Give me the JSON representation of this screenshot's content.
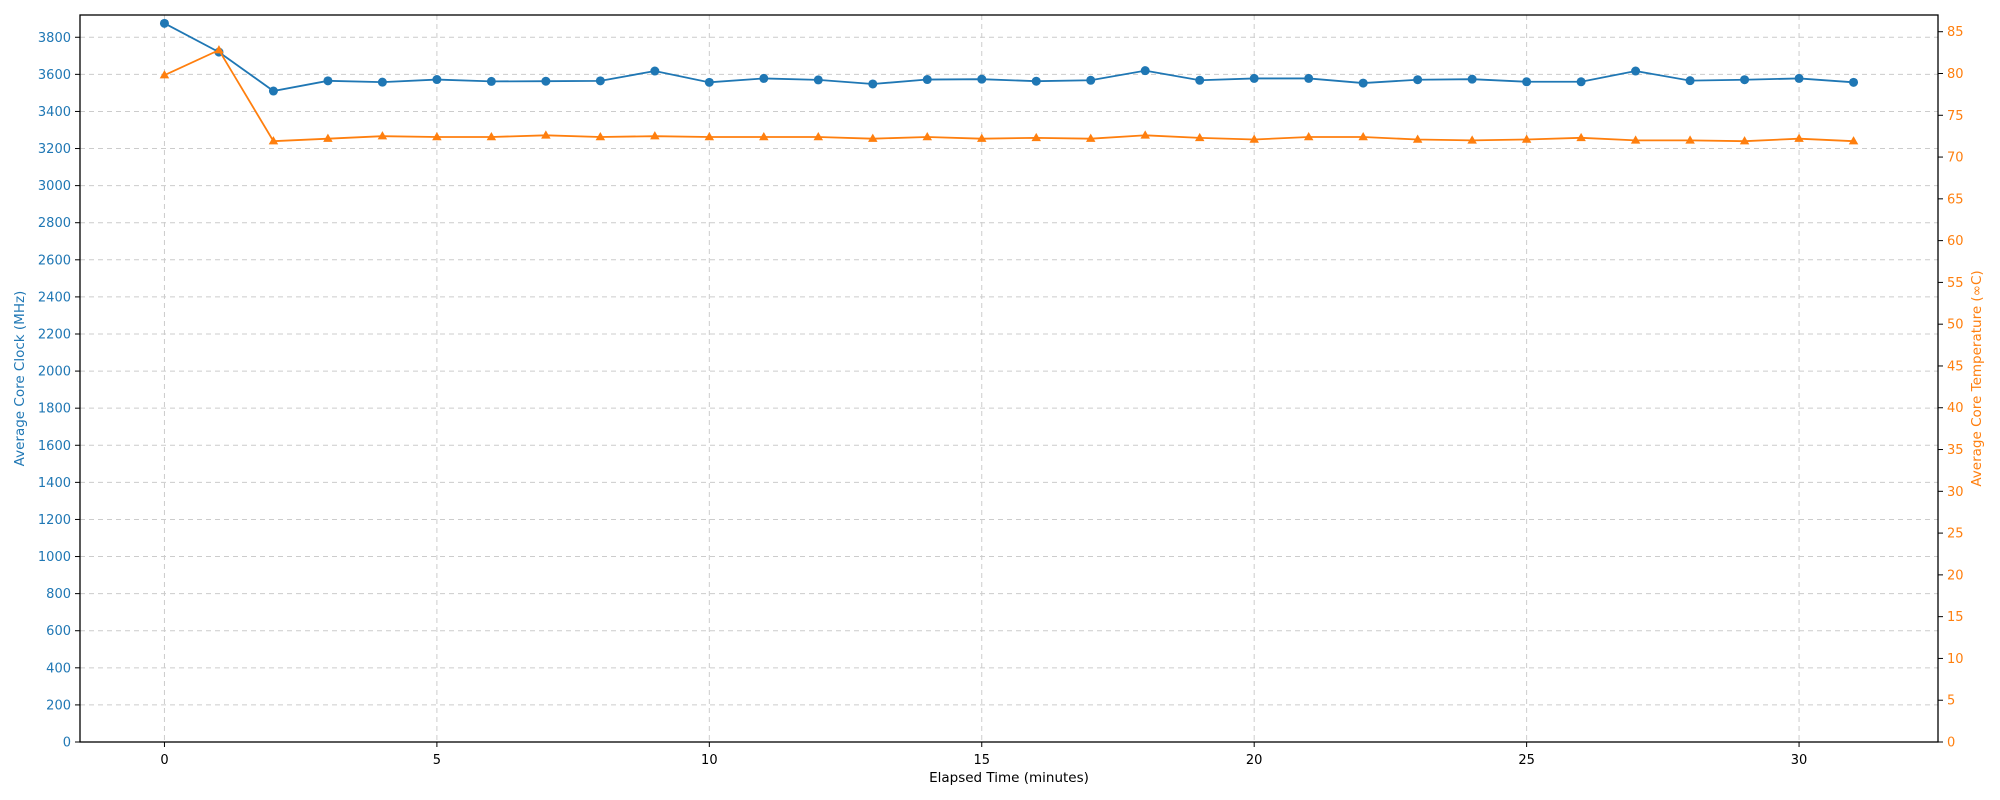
{
  "chart_data": {
    "type": "line",
    "xlabel": "Elapsed Time (minutes)",
    "ylabel_left": "Average Core Clock (MHz)",
    "ylabel_right": "Average Core Temperature (∞C)",
    "xlim": [
      -1.55,
      32.55
    ],
    "ylim_left": [
      0,
      3920
    ],
    "ylim_right": [
      0,
      87
    ],
    "x_ticks": [
      0,
      5,
      10,
      15,
      20,
      25,
      30
    ],
    "y_ticks_left": [
      0,
      200,
      400,
      600,
      800,
      1000,
      1200,
      1400,
      1600,
      1800,
      2000,
      2200,
      2400,
      2600,
      2800,
      3000,
      3200,
      3400,
      3600,
      3800
    ],
    "y_ticks_right": [
      0,
      5,
      10,
      15,
      20,
      25,
      30,
      35,
      40,
      45,
      50,
      55,
      60,
      65,
      70,
      75,
      80,
      85
    ],
    "grid": true,
    "x": [
      0,
      1,
      2,
      3,
      4,
      5,
      6,
      7,
      8,
      9,
      10,
      11,
      12,
      13,
      14,
      15,
      16,
      17,
      18,
      19,
      20,
      21,
      22,
      23,
      24,
      25,
      26,
      27,
      28,
      29,
      30,
      31
    ],
    "series": [
      {
        "axis": "left",
        "color": "#1f77b4",
        "marker": "circle",
        "values": [
          3875,
          3720,
          3510,
          3565,
          3558,
          3572,
          3562,
          3563,
          3565,
          3618,
          3557,
          3578,
          3570,
          3548,
          3572,
          3574,
          3563,
          3568,
          3620,
          3568,
          3578,
          3578,
          3553,
          3571,
          3574,
          3560,
          3560,
          3618,
          3566,
          3571,
          3578,
          3557
        ]
      },
      {
        "axis": "right",
        "color": "#ff7f0e",
        "marker": "triangle",
        "values": [
          79.8,
          82.8,
          71.9,
          72.2,
          72.5,
          72.4,
          72.4,
          72.6,
          72.4,
          72.5,
          72.4,
          72.4,
          72.4,
          72.2,
          72.4,
          72.2,
          72.3,
          72.2,
          72.6,
          72.3,
          72.1,
          72.4,
          72.4,
          72.1,
          72.0,
          72.1,
          72.3,
          72.0,
          72.0,
          71.9,
          72.2,
          71.9
        ]
      }
    ]
  }
}
